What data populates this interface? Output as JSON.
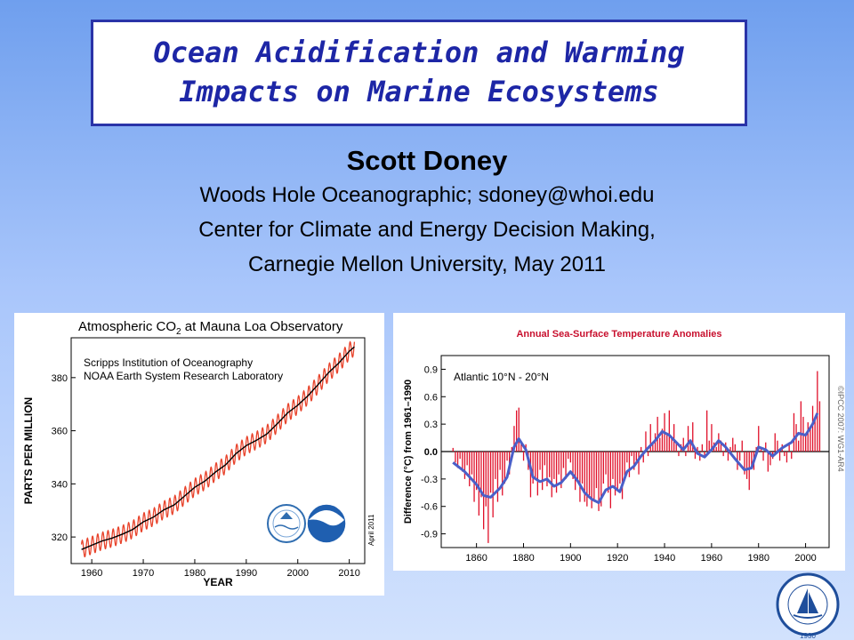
{
  "slide": {
    "title_line1": "Ocean Acidification and Warming",
    "title_line2": "Impacts on Marine Ecosystems",
    "author": "Scott Doney",
    "affiliation1": "Woods Hole Oceanographic; sdoney@whoi.edu",
    "affiliation2": "Center for Climate and Energy Decision Making,",
    "affiliation3": "Carnegie Mellon University, May 2011"
  },
  "colors": {
    "title_text": "#1d26a6",
    "title_border": "#2a33a8",
    "co2_monthly": "#e8432b",
    "co2_trend": "#000000",
    "sst_bars": "#e0102a",
    "sst_smooth": "#4a5fc8",
    "sst_title": "#c8102e"
  },
  "logo": {
    "text": "WOODS HOLE OCEANOGRAPHIC INSTITUTION",
    "year": "1930"
  },
  "chart_data": [
    {
      "type": "line",
      "title_prefix": "Atmospheric CO",
      "title_sub": "2",
      "title_suffix": " at Mauna Loa Observatory",
      "source1": "Scripps Institution of Oceanography",
      "source2": "NOAA Earth System Research Laboratory",
      "date_note": "April 2011",
      "xlabel": "YEAR",
      "ylabel": "PARTS PER MILLION",
      "xlim": [
        1956,
        2013
      ],
      "ylim": [
        310,
        395
      ],
      "x_ticks": [
        1960,
        1970,
        1980,
        1990,
        2000,
        2010
      ],
      "y_ticks": [
        320,
        340,
        360,
        380
      ],
      "trend_points": [
        [
          1958,
          315.3
        ],
        [
          1960,
          316.9
        ],
        [
          1962,
          318.5
        ],
        [
          1964,
          319.6
        ],
        [
          1966,
          321.1
        ],
        [
          1968,
          322.9
        ],
        [
          1970,
          325.7
        ],
        [
          1972,
          327.5
        ],
        [
          1974,
          330.2
        ],
        [
          1976,
          332.1
        ],
        [
          1978,
          335.4
        ],
        [
          1980,
          338.7
        ],
        [
          1982,
          341.1
        ],
        [
          1984,
          344.4
        ],
        [
          1986,
          347.2
        ],
        [
          1988,
          351.4
        ],
        [
          1990,
          354.4
        ],
        [
          1992,
          356.4
        ],
        [
          1994,
          358.8
        ],
        [
          1996,
          362.6
        ],
        [
          1998,
          366.7
        ],
        [
          2000,
          369.6
        ],
        [
          2002,
          373.2
        ],
        [
          2004,
          377.5
        ],
        [
          2006,
          381.9
        ],
        [
          2008,
          385.6
        ],
        [
          2010,
          389.9
        ],
        [
          2011,
          391.6
        ]
      ],
      "seasonal_amplitude_ppm": 3.3
    },
    {
      "type": "bar",
      "title": "Annual Sea-Surface Temperature Anomalies",
      "inset_label": "Atlantic 10°N - 20°N",
      "ylabel": "Difference (°C) from 1961–1990",
      "side_note": "©IPCC 2007: WG1-AR4",
      "xlim": [
        1845,
        2010
      ],
      "ylim": [
        -1.05,
        1.05
      ],
      "x_ticks": [
        1860,
        1880,
        1900,
        1920,
        1940,
        1960,
        1980,
        2000
      ],
      "y_ticks": [
        0.9,
        0.6,
        0.3,
        0.0,
        -0.3,
        -0.6,
        -0.9
      ],
      "y_tick_labels": [
        "0.9",
        "0.6",
        "0.3",
        "0.0",
        "-0.3",
        "-0.6",
        "-0.9"
      ],
      "smooth_points": [
        [
          1850,
          -0.12
        ],
        [
          1855,
          -0.22
        ],
        [
          1860,
          -0.36
        ],
        [
          1863,
          -0.48
        ],
        [
          1866,
          -0.5
        ],
        [
          1870,
          -0.4
        ],
        [
          1873,
          -0.28
        ],
        [
          1876,
          0.05
        ],
        [
          1878,
          0.14
        ],
        [
          1881,
          0.02
        ],
        [
          1884,
          -0.28
        ],
        [
          1887,
          -0.33
        ],
        [
          1890,
          -0.3
        ],
        [
          1893,
          -0.38
        ],
        [
          1896,
          -0.34
        ],
        [
          1900,
          -0.22
        ],
        [
          1903,
          -0.32
        ],
        [
          1906,
          -0.45
        ],
        [
          1909,
          -0.52
        ],
        [
          1912,
          -0.56
        ],
        [
          1915,
          -0.42
        ],
        [
          1918,
          -0.38
        ],
        [
          1921,
          -0.44
        ],
        [
          1924,
          -0.22
        ],
        [
          1927,
          -0.16
        ],
        [
          1930,
          -0.05
        ],
        [
          1933,
          0.04
        ],
        [
          1936,
          0.12
        ],
        [
          1939,
          0.22
        ],
        [
          1942,
          0.18
        ],
        [
          1945,
          0.1
        ],
        [
          1948,
          0.02
        ],
        [
          1951,
          0.12
        ],
        [
          1954,
          -0.02
        ],
        [
          1957,
          -0.06
        ],
        [
          1960,
          0.02
        ],
        [
          1963,
          0.12
        ],
        [
          1966,
          0.05
        ],
        [
          1970,
          -0.08
        ],
        [
          1974,
          -0.2
        ],
        [
          1977,
          -0.18
        ],
        [
          1980,
          0.05
        ],
        [
          1983,
          0.02
        ],
        [
          1986,
          -0.05
        ],
        [
          1990,
          0.04
        ],
        [
          1994,
          0.1
        ],
        [
          1997,
          0.2
        ],
        [
          2000,
          0.18
        ],
        [
          2003,
          0.3
        ],
        [
          2005,
          0.42
        ]
      ],
      "bar_values": [
        {
          "x": 1850,
          "y": 0.04
        },
        {
          "x": 1851,
          "y": -0.12
        },
        {
          "x": 1852,
          "y": -0.18
        },
        {
          "x": 1853,
          "y": -0.08
        },
        {
          "x": 1854,
          "y": -0.22
        },
        {
          "x": 1855,
          "y": -0.3
        },
        {
          "x": 1856,
          "y": -0.15
        },
        {
          "x": 1857,
          "y": -0.38
        },
        {
          "x": 1858,
          "y": -0.25
        },
        {
          "x": 1859,
          "y": -0.55
        },
        {
          "x": 1860,
          "y": -0.42
        },
        {
          "x": 1861,
          "y": -0.7
        },
        {
          "x": 1862,
          "y": -0.5
        },
        {
          "x": 1863,
          "y": -0.85
        },
        {
          "x": 1864,
          "y": -0.6
        },
        {
          "x": 1865,
          "y": -1.0
        },
        {
          "x": 1866,
          "y": -0.45
        },
        {
          "x": 1867,
          "y": -0.72
        },
        {
          "x": 1868,
          "y": -0.3
        },
        {
          "x": 1869,
          "y": -0.55
        },
        {
          "x": 1870,
          "y": -0.2
        },
        {
          "x": 1871,
          "y": -0.48
        },
        {
          "x": 1872,
          "y": -0.35
        },
        {
          "x": 1873,
          "y": -0.1
        },
        {
          "x": 1874,
          "y": -0.25
        },
        {
          "x": 1875,
          "y": 0.05
        },
        {
          "x": 1876,
          "y": 0.28
        },
        {
          "x": 1877,
          "y": 0.45
        },
        {
          "x": 1878,
          "y": 0.48
        },
        {
          "x": 1879,
          "y": 0.1
        },
        {
          "x": 1880,
          "y": -0.1
        },
        {
          "x": 1881,
          "y": 0.08
        },
        {
          "x": 1882,
          "y": -0.2
        },
        {
          "x": 1883,
          "y": -0.5
        },
        {
          "x": 1884,
          "y": -0.35
        },
        {
          "x": 1885,
          "y": -0.3
        },
        {
          "x": 1886,
          "y": -0.48
        },
        {
          "x": 1887,
          "y": -0.2
        },
        {
          "x": 1888,
          "y": -0.42
        },
        {
          "x": 1889,
          "y": -0.15
        },
        {
          "x": 1890,
          "y": -0.38
        },
        {
          "x": 1891,
          "y": -0.28
        },
        {
          "x": 1892,
          "y": -0.5
        },
        {
          "x": 1893,
          "y": -0.3
        },
        {
          "x": 1894,
          "y": -0.45
        },
        {
          "x": 1895,
          "y": -0.25
        },
        {
          "x": 1896,
          "y": -0.4
        },
        {
          "x": 1897,
          "y": -0.18
        },
        {
          "x": 1898,
          "y": -0.3
        },
        {
          "x": 1899,
          "y": -0.08
        },
        {
          "x": 1900,
          "y": -0.12
        },
        {
          "x": 1901,
          "y": -0.3
        },
        {
          "x": 1902,
          "y": -0.42
        },
        {
          "x": 1903,
          "y": -0.3
        },
        {
          "x": 1904,
          "y": -0.55
        },
        {
          "x": 1905,
          "y": -0.35
        },
        {
          "x": 1906,
          "y": -0.55
        },
        {
          "x": 1907,
          "y": -0.6
        },
        {
          "x": 1908,
          "y": -0.48
        },
        {
          "x": 1909,
          "y": -0.62
        },
        {
          "x": 1910,
          "y": -0.55
        },
        {
          "x": 1911,
          "y": -0.4
        },
        {
          "x": 1912,
          "y": -0.65
        },
        {
          "x": 1913,
          "y": -0.6
        },
        {
          "x": 1914,
          "y": -0.35
        },
        {
          "x": 1915,
          "y": -0.25
        },
        {
          "x": 1916,
          "y": -0.45
        },
        {
          "x": 1917,
          "y": -0.62
        },
        {
          "x": 1918,
          "y": -0.3
        },
        {
          "x": 1919,
          "y": -0.48
        },
        {
          "x": 1920,
          "y": -0.42
        },
        {
          "x": 1921,
          "y": -0.35
        },
        {
          "x": 1922,
          "y": -0.52
        },
        {
          "x": 1923,
          "y": -0.3
        },
        {
          "x": 1924,
          "y": -0.12
        },
        {
          "x": 1925,
          "y": -0.28
        },
        {
          "x": 1926,
          "y": -0.05
        },
        {
          "x": 1927,
          "y": -0.2
        },
        {
          "x": 1928,
          "y": -0.1
        },
        {
          "x": 1929,
          "y": -0.25
        },
        {
          "x": 1930,
          "y": 0.05
        },
        {
          "x": 1931,
          "y": -0.12
        },
        {
          "x": 1932,
          "y": 0.22
        },
        {
          "x": 1933,
          "y": -0.05
        },
        {
          "x": 1934,
          "y": 0.3
        },
        {
          "x": 1935,
          "y": 0.1
        },
        {
          "x": 1936,
          "y": 0.2
        },
        {
          "x": 1937,
          "y": 0.38
        },
        {
          "x": 1938,
          "y": 0.15
        },
        {
          "x": 1939,
          "y": 0.25
        },
        {
          "x": 1940,
          "y": 0.42
        },
        {
          "x": 1941,
          "y": 0.2
        },
        {
          "x": 1942,
          "y": 0.45
        },
        {
          "x": 1943,
          "y": 0.15
        },
        {
          "x": 1944,
          "y": 0.3
        },
        {
          "x": 1945,
          "y": 0.1
        },
        {
          "x": 1946,
          "y": -0.05
        },
        {
          "x": 1947,
          "y": 0.08
        },
        {
          "x": 1948,
          "y": 0.15
        },
        {
          "x": 1949,
          "y": -0.05
        },
        {
          "x": 1950,
          "y": 0.28
        },
        {
          "x": 1951,
          "y": 0.1
        },
        {
          "x": 1952,
          "y": 0.32
        },
        {
          "x": 1953,
          "y": -0.08
        },
        {
          "x": 1954,
          "y": 0.05
        },
        {
          "x": 1955,
          "y": -0.1
        },
        {
          "x": 1956,
          "y": 0.08
        },
        {
          "x": 1957,
          "y": -0.05
        },
        {
          "x": 1958,
          "y": 0.45
        },
        {
          "x": 1959,
          "y": 0.12
        },
        {
          "x": 1960,
          "y": 0.3
        },
        {
          "x": 1961,
          "y": 0.1
        },
        {
          "x": 1962,
          "y": 0.05
        },
        {
          "x": 1963,
          "y": 0.2
        },
        {
          "x": 1964,
          "y": 0.12
        },
        {
          "x": 1965,
          "y": -0.05
        },
        {
          "x": 1966,
          "y": 0.1
        },
        {
          "x": 1967,
          "y": -0.1
        },
        {
          "x": 1968,
          "y": 0.05
        },
        {
          "x": 1969,
          "y": 0.15
        },
        {
          "x": 1970,
          "y": 0.08
        },
        {
          "x": 1971,
          "y": -0.2
        },
        {
          "x": 1972,
          "y": -0.1
        },
        {
          "x": 1973,
          "y": 0.12
        },
        {
          "x": 1974,
          "y": -0.25
        },
        {
          "x": 1975,
          "y": -0.3
        },
        {
          "x": 1976,
          "y": -0.42
        },
        {
          "x": 1977,
          "y": -0.15
        },
        {
          "x": 1978,
          "y": -0.2
        },
        {
          "x": 1979,
          "y": 0.05
        },
        {
          "x": 1980,
          "y": 0.28
        },
        {
          "x": 1981,
          "y": 0.05
        },
        {
          "x": 1982,
          "y": -0.1
        },
        {
          "x": 1983,
          "y": 0.1
        },
        {
          "x": 1984,
          "y": -0.22
        },
        {
          "x": 1985,
          "y": -0.15
        },
        {
          "x": 1986,
          "y": -0.08
        },
        {
          "x": 1987,
          "y": 0.2
        },
        {
          "x": 1988,
          "y": 0.12
        },
        {
          "x": 1989,
          "y": -0.1
        },
        {
          "x": 1990,
          "y": 0.08
        },
        {
          "x": 1991,
          "y": -0.05
        },
        {
          "x": 1992,
          "y": -0.12
        },
        {
          "x": 1993,
          "y": 0.1
        },
        {
          "x": 1994,
          "y": -0.08
        },
        {
          "x": 1995,
          "y": 0.42
        },
        {
          "x": 1996,
          "y": 0.3
        },
        {
          "x": 1997,
          "y": 0.12
        },
        {
          "x": 1998,
          "y": 0.55
        },
        {
          "x": 1999,
          "y": 0.38
        },
        {
          "x": 2000,
          "y": 0.2
        },
        {
          "x": 2001,
          "y": 0.32
        },
        {
          "x": 2002,
          "y": 0.25
        },
        {
          "x": 2003,
          "y": 0.5
        },
        {
          "x": 2004,
          "y": 0.35
        },
        {
          "x": 2005,
          "y": 0.88
        },
        {
          "x": 2006,
          "y": 0.55
        }
      ]
    }
  ]
}
